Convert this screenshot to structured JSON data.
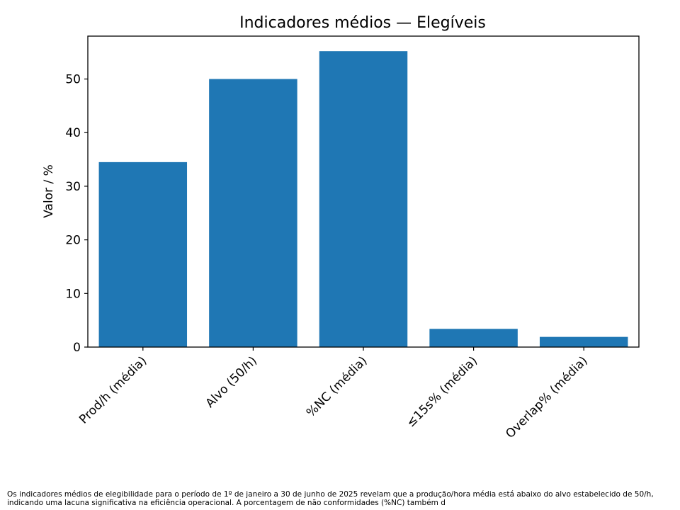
{
  "chart_data": {
    "type": "bar",
    "title": "Indicadores médios — Elegíveis",
    "xlabel": "",
    "ylabel": "Valor / %",
    "categories": [
      "Prod/h (média)",
      "Alvo (50/h)",
      "%NC (média)",
      "≤15s% (média)",
      "Overlap% (média)"
    ],
    "values": [
      34.5,
      50.0,
      55.2,
      3.4,
      1.9
    ],
    "ylim": [
      0,
      58
    ],
    "yticks": [
      0,
      10,
      20,
      30,
      40,
      50
    ],
    "bar_color": "#1f77b4",
    "grid": false,
    "legend": "none"
  },
  "caption": "Os indicadores médios de elegibilidade para o período de 1º de janeiro a 30 de junho de 2025 revelam que a produção/hora média está abaixo do alvo estabelecido de 50/h, indicando uma lacuna significativa na eficiência operacional. A porcentagem de não conformidades (%NC) também d"
}
